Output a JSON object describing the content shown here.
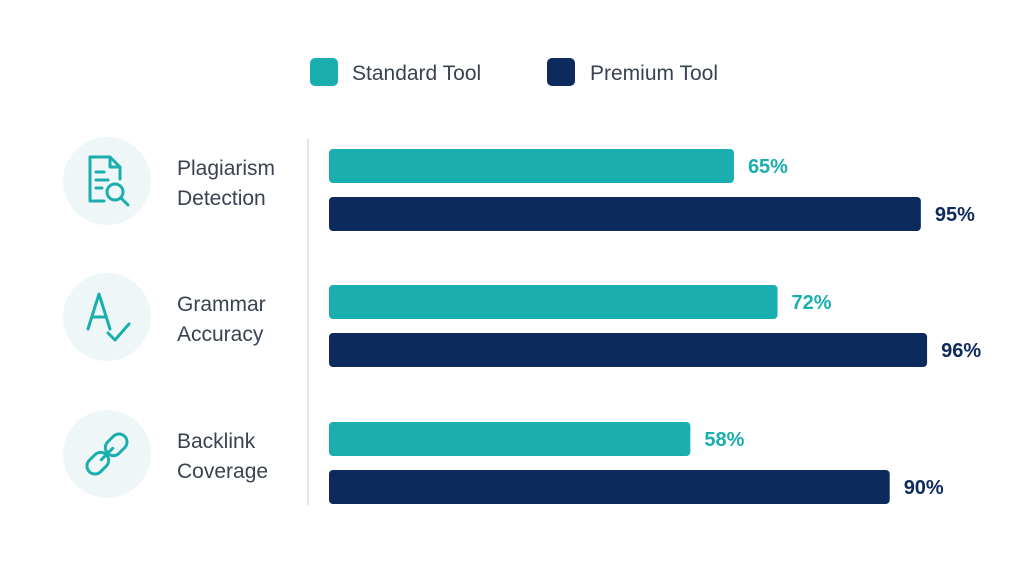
{
  "chart_data": {
    "type": "bar",
    "orientation": "horizontal",
    "categories": [
      "Plagiarism Detection",
      "Grammar Accuracy",
      "Backlink Coverage"
    ],
    "category_lines": [
      [
        "Plagiarism",
        "Detection"
      ],
      [
        "Grammar",
        "Accuracy"
      ],
      [
        "Backlink",
        "Coverage"
      ]
    ],
    "category_icons": [
      "document-search-icon",
      "spell-check-icon",
      "link-icon"
    ],
    "series": [
      {
        "name": "Standard Tool",
        "values": [
          65,
          72,
          58
        ],
        "color": "#1aafae"
      },
      {
        "name": "Premium Tool",
        "values": [
          95,
          96,
          90
        ],
        "color": "#0c2a5b"
      }
    ],
    "value_suffix": "%",
    "xlim": [
      0,
      100
    ],
    "legend": "top-center",
    "grid": false
  }
}
